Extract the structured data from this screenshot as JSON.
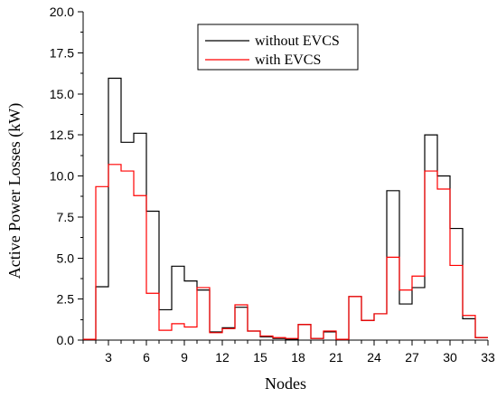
{
  "chart_data": {
    "type": "line",
    "step": true,
    "xlabel": "Nodes",
    "ylabel": "Active Power Losses (kW)",
    "xlim": [
      1,
      33
    ],
    "ylim": [
      0,
      20
    ],
    "xticks": [
      3,
      6,
      9,
      12,
      15,
      18,
      21,
      24,
      27,
      30,
      33
    ],
    "yticks": [
      "0.0",
      "2.5",
      "5.0",
      "7.5",
      "10.0",
      "12.5",
      "15.0",
      "17.5",
      "20.0"
    ],
    "x": [
      1,
      2,
      3,
      4,
      5,
      6,
      7,
      8,
      9,
      10,
      11,
      12,
      13,
      14,
      15,
      16,
      17,
      18,
      19,
      20,
      21,
      22,
      23,
      24,
      25,
      26,
      27,
      28,
      29,
      30,
      31,
      32
    ],
    "series": [
      {
        "name": "without EVCS",
        "color": "#000000",
        "values": [
          0.05,
          3.25,
          15.95,
          12.05,
          12.6,
          7.85,
          1.85,
          4.5,
          3.6,
          3.05,
          0.5,
          0.75,
          2.0,
          0.55,
          0.2,
          0.1,
          0.05,
          0.95,
          0.1,
          0.5,
          0.05,
          2.65,
          1.2,
          1.6,
          9.1,
          2.2,
          3.2,
          12.5,
          10.0,
          6.8,
          1.3,
          0.15
        ]
      },
      {
        "name": "with EVCS",
        "color": "#ff0000",
        "values": [
          0.05,
          9.35,
          10.7,
          10.3,
          8.8,
          2.85,
          0.6,
          1.0,
          0.8,
          3.2,
          0.45,
          0.7,
          2.15,
          0.55,
          0.25,
          0.15,
          0.1,
          0.95,
          0.1,
          0.55,
          0.05,
          2.65,
          1.2,
          1.6,
          5.05,
          3.05,
          3.9,
          10.3,
          9.2,
          4.55,
          1.5,
          0.15
        ]
      }
    ],
    "legend_position": "top-center",
    "grid": false
  }
}
